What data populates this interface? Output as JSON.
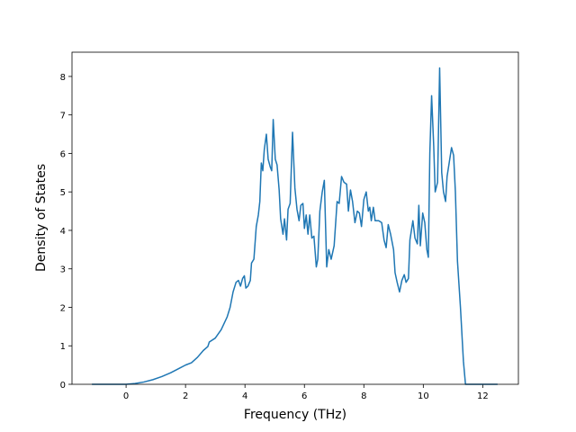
{
  "chart_data": {
    "type": "line",
    "xlabel": "Frequency (THz)",
    "ylabel": "Density of States",
    "color": "#1f77b4",
    "x": [
      -1.15,
      -0.5,
      0,
      0.3,
      0.6,
      0.9,
      1.2,
      1.5,
      1.8,
      2.0,
      2.2,
      2.4,
      2.6,
      2.75,
      2.8,
      3.0,
      3.2,
      3.4,
      3.5,
      3.6,
      3.7,
      3.78,
      3.85,
      3.92,
      3.98,
      4.03,
      4.1,
      4.18,
      4.22,
      4.3,
      4.38,
      4.45,
      4.5,
      4.55,
      4.6,
      4.65,
      4.72,
      4.78,
      4.85,
      4.9,
      4.95,
      5.02,
      5.08,
      5.15,
      5.2,
      5.28,
      5.33,
      5.4,
      5.45,
      5.52,
      5.6,
      5.68,
      5.75,
      5.82,
      5.88,
      5.95,
      6.0,
      6.06,
      6.12,
      6.18,
      6.25,
      6.32,
      6.4,
      6.45,
      6.52,
      6.6,
      6.67,
      6.75,
      6.82,
      6.9,
      7.0,
      7.1,
      7.17,
      7.25,
      7.33,
      7.42,
      7.48,
      7.55,
      7.62,
      7.7,
      7.78,
      7.85,
      7.92,
      8.0,
      8.08,
      8.15,
      8.2,
      8.25,
      8.32,
      8.38,
      8.5,
      8.6,
      8.68,
      8.75,
      8.82,
      8.9,
      9.0,
      9.05,
      9.12,
      9.2,
      9.28,
      9.36,
      9.42,
      9.5,
      9.55,
      9.65,
      9.72,
      9.8,
      9.85,
      9.9,
      9.98,
      10.05,
      10.12,
      10.17,
      10.22,
      10.28,
      10.35,
      10.4,
      10.48,
      10.55,
      10.62,
      10.68,
      10.75,
      10.8,
      10.9,
      10.95,
      11.02,
      11.08,
      11.15,
      11.25,
      11.35,
      11.42,
      11.8,
      12.5
    ],
    "values": [
      0,
      0,
      0,
      0.02,
      0.06,
      0.12,
      0.2,
      0.3,
      0.42,
      0.5,
      0.56,
      0.7,
      0.88,
      0.98,
      1.1,
      1.2,
      1.42,
      1.75,
      2.0,
      2.4,
      2.65,
      2.7,
      2.55,
      2.75,
      2.82,
      2.5,
      2.55,
      2.7,
      3.15,
      3.25,
      4.1,
      4.4,
      4.75,
      5.75,
      5.55,
      6.1,
      6.5,
      5.85,
      5.65,
      5.55,
      6.88,
      5.85,
      5.7,
      5.05,
      4.3,
      3.9,
      4.3,
      3.75,
      4.55,
      4.7,
      6.55,
      5.1,
      4.55,
      4.25,
      4.65,
      4.7,
      4.05,
      4.4,
      3.9,
      4.4,
      3.8,
      3.85,
      3.05,
      3.25,
      4.5,
      5.0,
      5.3,
      3.05,
      3.5,
      3.25,
      3.6,
      4.75,
      4.7,
      5.4,
      5.25,
      5.2,
      4.5,
      5.05,
      4.75,
      4.2,
      4.5,
      4.45,
      4.1,
      4.8,
      5.0,
      4.5,
      4.6,
      4.25,
      4.6,
      4.25,
      4.25,
      4.2,
      3.75,
      3.55,
      4.15,
      3.9,
      3.5,
      2.9,
      2.65,
      2.4,
      2.7,
      2.85,
      2.65,
      2.75,
      3.75,
      4.25,
      3.8,
      3.65,
      4.65,
      3.6,
      4.45,
      4.2,
      3.5,
      3.3,
      6.0,
      7.5,
      6.2,
      5.0,
      5.25,
      8.22,
      5.5,
      5.0,
      4.75,
      5.4,
      5.9,
      6.15,
      5.95,
      5.0,
      3.2,
      2.0,
      0.6,
      0,
      0,
      0
    ],
    "xlim": [
      -1.82,
      13.2
    ],
    "ylim": [
      0,
      8.63
    ],
    "xticks": [
      0,
      2,
      4,
      6,
      8,
      10,
      12
    ],
    "yticks": [
      0,
      1,
      2,
      3,
      4,
      5,
      6,
      7,
      8
    ]
  }
}
